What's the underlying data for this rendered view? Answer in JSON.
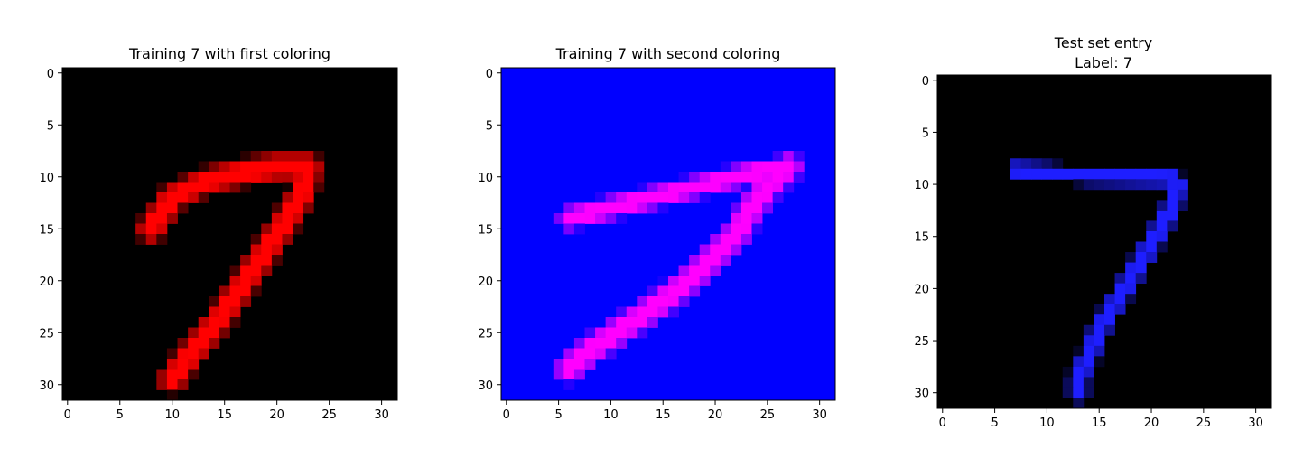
{
  "panels": [
    {
      "title_lines": [
        "Training 7 with first coloring"
      ],
      "background": "#000000",
      "digit_color": [
        255,
        0,
        0
      ],
      "digit_pattern": "slanted",
      "xticks": [
        "0",
        "5",
        "10",
        "15",
        "20",
        "25",
        "30"
      ],
      "yticks": [
        "0",
        "5",
        "10",
        "15",
        "20",
        "25",
        "30"
      ],
      "axis_range": [
        -0.5,
        31.5
      ]
    },
    {
      "title_lines": [
        "Training 7 with second coloring"
      ],
      "background": "#0000ff",
      "digit_color": [
        255,
        0,
        255
      ],
      "digit_pattern": "long",
      "xticks": [
        "0",
        "5",
        "10",
        "15",
        "20",
        "25",
        "30"
      ],
      "yticks": [
        "0",
        "5",
        "10",
        "15",
        "20",
        "25",
        "30"
      ],
      "axis_range": [
        -0.5,
        31.5
      ]
    },
    {
      "title_lines": [
        "Test set entry",
        "Label: 7"
      ],
      "background": "#000000",
      "digit_color": [
        30,
        30,
        255
      ],
      "digit_pattern": "straight",
      "xticks": [
        "0",
        "5",
        "10",
        "15",
        "20",
        "25",
        "30"
      ],
      "yticks": [
        "0",
        "5",
        "10",
        "15",
        "20",
        "25",
        "30"
      ],
      "axis_range": [
        -0.5,
        31.5
      ]
    }
  ]
}
